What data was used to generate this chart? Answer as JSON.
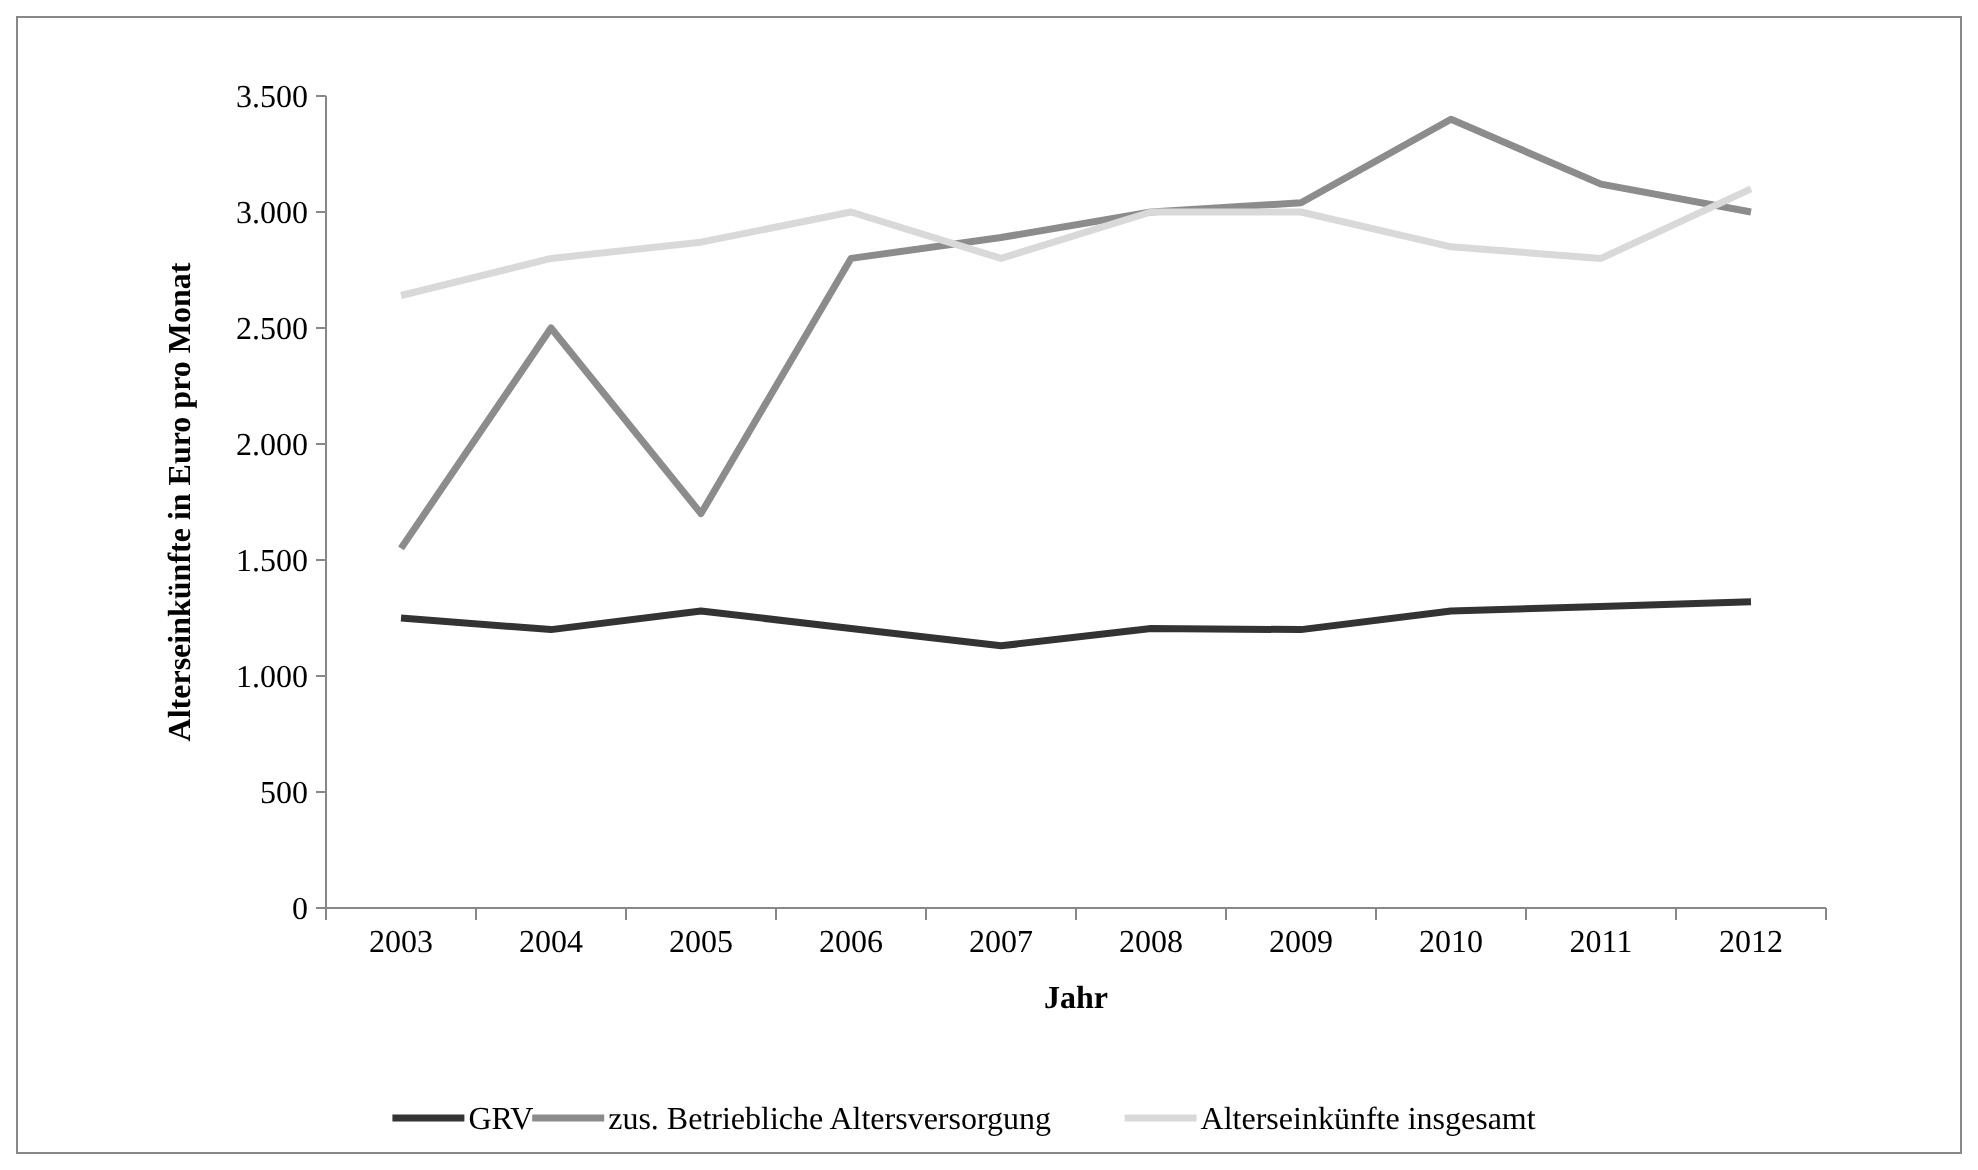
{
  "chart_data": {
    "type": "line",
    "ylabel": "Alterseinkünfte in Euro pro Monat",
    "xlabel": "Jahr",
    "categories": [
      "2003",
      "2004",
      "2005",
      "2006",
      "2007",
      "2008",
      "2009",
      "2010",
      "2011",
      "2012"
    ],
    "series": [
      {
        "name": "GRV",
        "color": "#333333",
        "values": [
          1250,
          1200,
          1280,
          1205,
          1130,
          1205,
          1200,
          1280,
          1300,
          1320
        ]
      },
      {
        "name": "zus. Betriebliche Altersversorgung",
        "color": "#8c8c8c",
        "values": [
          1550,
          2500,
          1700,
          2800,
          2890,
          3000,
          3040,
          3400,
          3120,
          3000
        ]
      },
      {
        "name": "Alterseinkünfte insgesamt",
        "color": "#d9d9d9",
        "values": [
          2640,
          2800,
          2870,
          3000,
          2800,
          3000,
          3000,
          2850,
          2800,
          3100
        ]
      }
    ],
    "ylim": [
      0,
      3500
    ],
    "yticks": [
      {
        "value": 0,
        "label": "0"
      },
      {
        "value": 500,
        "label": "500"
      },
      {
        "value": 1000,
        "label": "1.000"
      },
      {
        "value": 1500,
        "label": "1.500"
      },
      {
        "value": 2000,
        "label": "2.000"
      },
      {
        "value": 2500,
        "label": "2.500"
      },
      {
        "value": 3000,
        "label": "3.000"
      },
      {
        "value": 3500,
        "label": "3.500"
      }
    ],
    "grid": false,
    "legend": "bottom",
    "marker": "none",
    "line_style": "solid"
  }
}
